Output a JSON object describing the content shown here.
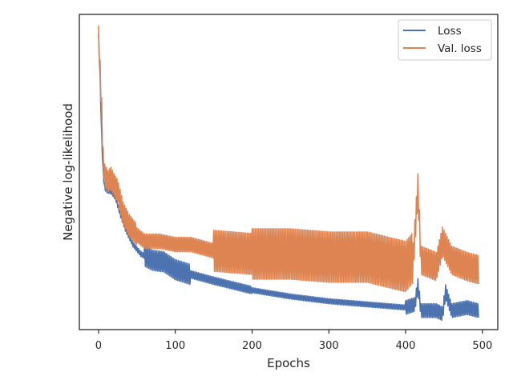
{
  "chart_data": {
    "type": "line",
    "title": "",
    "xlabel": "Epochs",
    "ylabel": "Negative log-likelihood",
    "xlim": [
      -25,
      520
    ],
    "ylim": [
      0,
      100
    ],
    "xticks": [
      0,
      100,
      200,
      300,
      400,
      500
    ],
    "yticks_shown": false,
    "grid": false,
    "legend_position": "top-right",
    "series": [
      {
        "name": "Loss",
        "color": "#4c72b0",
        "style": "smooth",
        "x": [
          0,
          2,
          4,
          6,
          8,
          12,
          16,
          22,
          28,
          35,
          45,
          55,
          70,
          85,
          100,
          120,
          150,
          200,
          250,
          300,
          350,
          400,
          412,
          416,
          420,
          440,
          448,
          452,
          460,
          480,
          495
        ],
        "values": [
          93,
          80,
          62,
          50,
          45,
          44,
          44,
          42,
          37,
          32,
          27,
          24,
          22,
          21.5,
          19,
          17.5,
          15.5,
          12.5,
          10.5,
          9,
          8,
          7,
          8,
          14,
          6,
          6,
          5,
          12,
          6,
          7,
          6
        ],
        "oscillation": [
          {
            "from": 0,
            "to": 60,
            "amp": 0.8
          },
          {
            "from": 60,
            "to": 120,
            "amp": 3.2
          },
          {
            "from": 120,
            "to": 200,
            "amp": 1.2
          },
          {
            "from": 200,
            "to": 400,
            "amp": 0.8
          },
          {
            "from": 400,
            "to": 500,
            "amp": 2.2
          }
        ]
      },
      {
        "name": "Val. loss",
        "color": "#dd8452",
        "style": "smooth",
        "x": [
          0,
          2,
          4,
          6,
          8,
          12,
          16,
          20,
          25,
          32,
          40,
          50,
          60,
          80,
          100,
          120,
          150,
          200,
          250,
          300,
          350,
          400,
          410,
          416,
          420,
          440,
          448,
          460,
          480,
          495
        ],
        "values": [
          93,
          82,
          70,
          54,
          49,
          47,
          48,
          46,
          44,
          37,
          33,
          30,
          28,
          28,
          27,
          27,
          25,
          24,
          24,
          23,
          23,
          20,
          23,
          45,
          22,
          20,
          28,
          22,
          20,
          19
        ],
        "oscillation": [
          {
            "from": 0,
            "to": 50,
            "amp": 3.5
          },
          {
            "from": 50,
            "to": 150,
            "amp": 2.3
          },
          {
            "from": 150,
            "to": 200,
            "amp": 6.5
          },
          {
            "from": 200,
            "to": 410,
            "amp": 8
          },
          {
            "from": 410,
            "to": 500,
            "amp": 4.5
          }
        ]
      }
    ]
  }
}
